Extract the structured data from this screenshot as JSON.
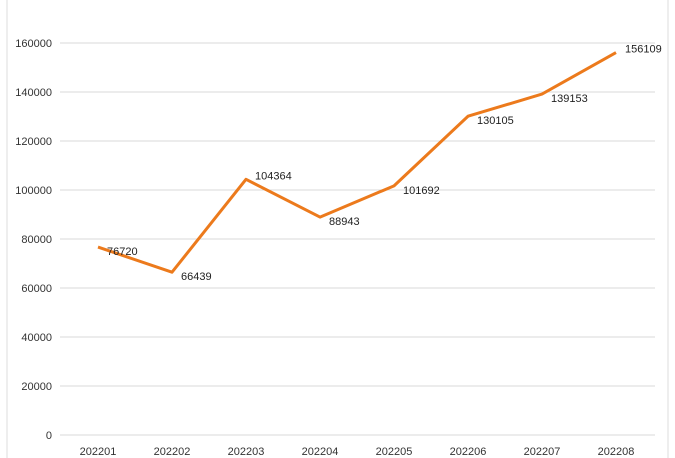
{
  "chart_data": {
    "type": "line",
    "title": "",
    "xlabel": "",
    "ylabel": "",
    "categories": [
      "202201",
      "202202",
      "202203",
      "202204",
      "202205",
      "202206",
      "202207",
      "202208"
    ],
    "values": [
      76720,
      66439,
      104364,
      88943,
      101692,
      130105,
      139153,
      156109
    ],
    "ylim": [
      0,
      160000
    ],
    "yticks": [
      0,
      20000,
      40000,
      60000,
      80000,
      100000,
      120000,
      140000,
      160000
    ],
    "grid": true,
    "legend": "none",
    "colors": {
      "line": "#EC7A1C",
      "grid": "#D9D9D9",
      "text": "#333333"
    }
  }
}
